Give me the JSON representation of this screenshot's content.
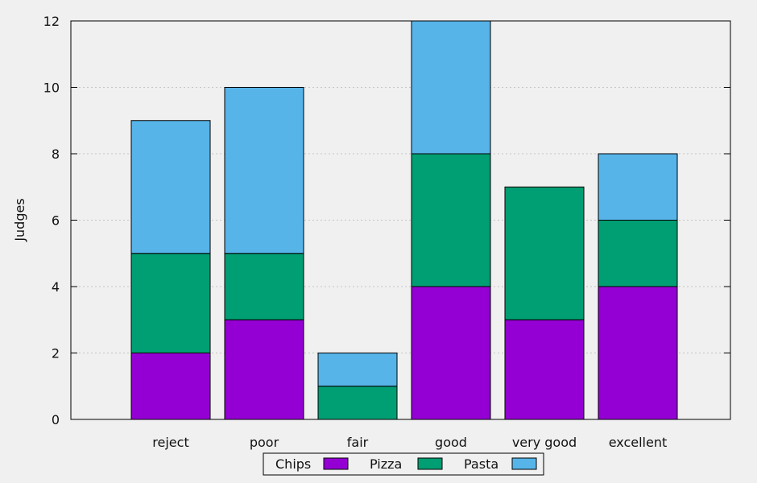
{
  "chart_data": {
    "type": "bar",
    "stacked": true,
    "title": "",
    "xlabel": "",
    "ylabel": "Judges",
    "ylim": [
      0,
      12
    ],
    "yticks": [
      0,
      2,
      4,
      6,
      8,
      10,
      12
    ],
    "grid": "horizontal dotted",
    "legend_position": "bottom-center",
    "categories": [
      "reject",
      "poor",
      "fair",
      "good",
      "very good",
      "excellent"
    ],
    "series": [
      {
        "name": "Chips",
        "color": "#9400d3",
        "values": [
          2,
          3,
          0,
          4,
          3,
          4
        ]
      },
      {
        "name": "Pizza",
        "color": "#009e73",
        "values": [
          3,
          2,
          1,
          4,
          4,
          2
        ]
      },
      {
        "name": "Pasta",
        "color": "#56b4e9",
        "values": [
          4,
          5,
          1,
          4,
          0,
          2
        ]
      }
    ]
  }
}
